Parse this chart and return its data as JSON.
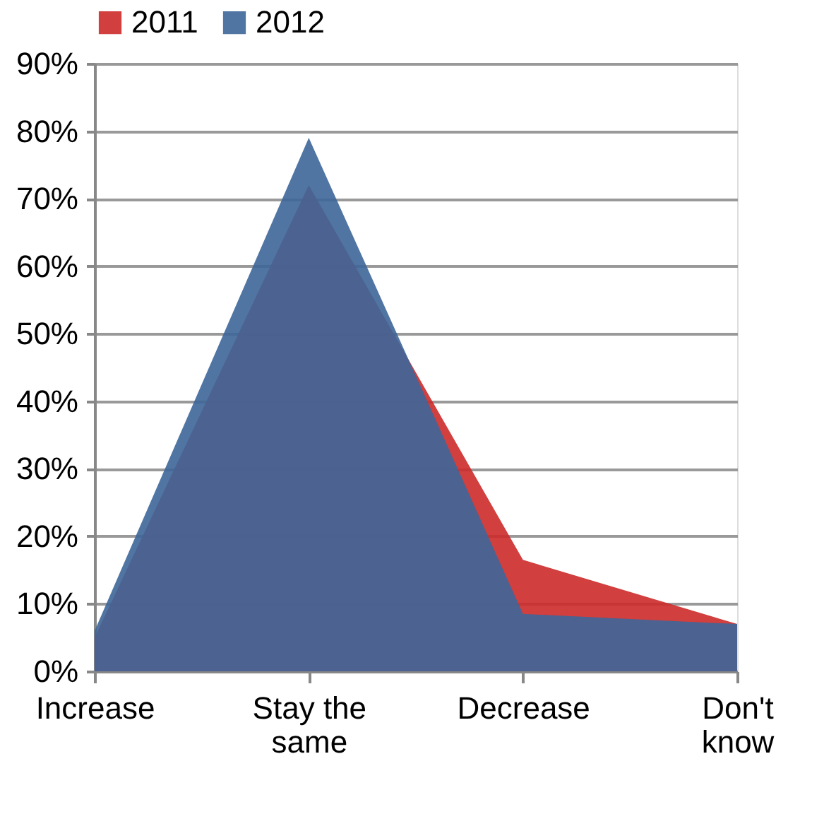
{
  "chart_data": {
    "type": "area",
    "categories": [
      "Increase",
      "Stay the same",
      "Decrease",
      "Don't know"
    ],
    "series": [
      {
        "name": "2011",
        "color": "#cc2a2a",
        "values": [
          5,
          72,
          16.5,
          7
        ]
      },
      {
        "name": "2012",
        "color": "#3d6699",
        "values": [
          6,
          79,
          8.5,
          7
        ]
      }
    ],
    "ylim": [
      0,
      90
    ],
    "yticks": [
      {
        "value": 0,
        "label": "0%"
      },
      {
        "value": 10,
        "label": "10%"
      },
      {
        "value": 20,
        "label": "20%"
      },
      {
        "value": 30,
        "label": "30%"
      },
      {
        "value": 40,
        "label": "40%"
      },
      {
        "value": 50,
        "label": "50%"
      },
      {
        "value": 60,
        "label": "60%"
      },
      {
        "value": 70,
        "label": "70%"
      },
      {
        "value": 80,
        "label": "80%"
      },
      {
        "value": 90,
        "label": "90%"
      }
    ],
    "grid": "y",
    "legend": "top"
  }
}
